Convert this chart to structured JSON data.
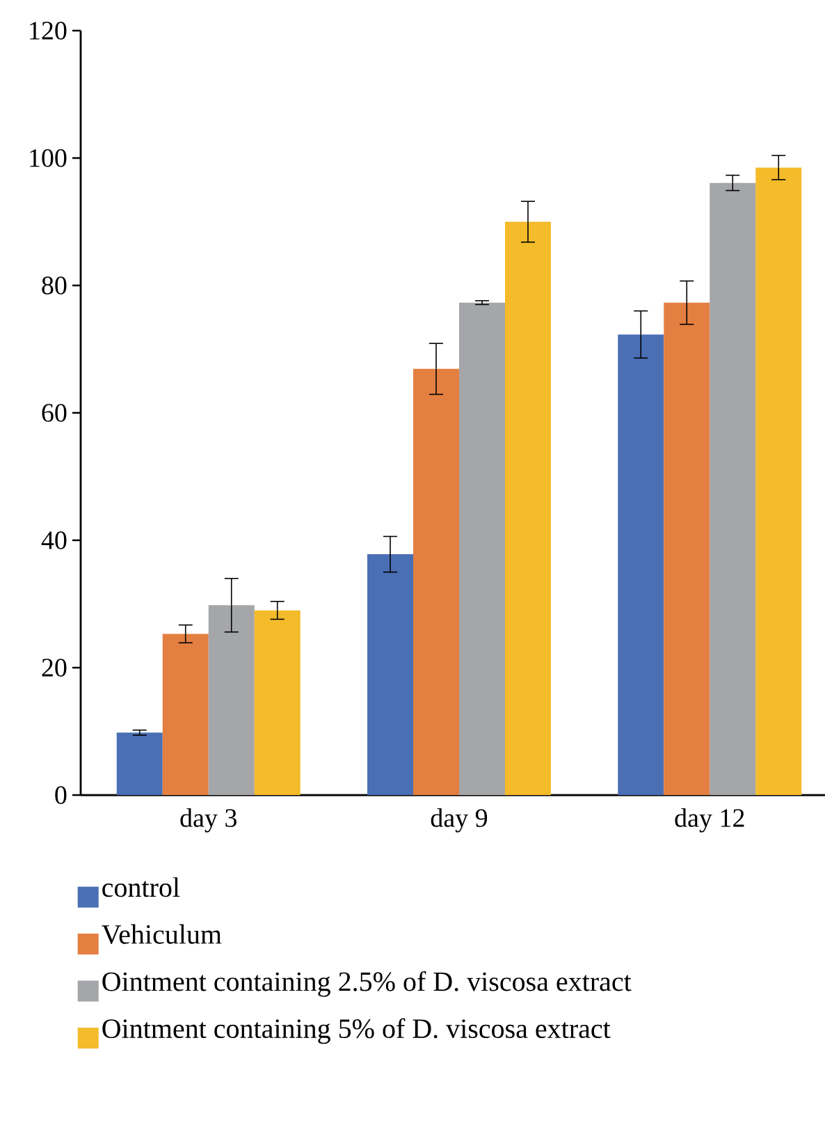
{
  "chart_data": {
    "type": "bar",
    "categories": [
      "day 3",
      "day 9",
      "day 12"
    ],
    "series": [
      {
        "name": "control",
        "color": "#4a6fb5",
        "values": [
          9.8,
          37.8,
          72.3
        ],
        "errors": [
          0.4,
          2.8,
          3.7
        ]
      },
      {
        "name": "Vehiculum",
        "color": "#e37f40",
        "values": [
          25.3,
          66.9,
          77.3
        ],
        "errors": [
          1.4,
          4.0,
          3.4
        ]
      },
      {
        "name": "Ointment containing 2.5% of D. viscosa extract",
        "color": "#a5a6aa",
        "values": [
          29.8,
          77.3,
          96.1
        ],
        "errors": [
          4.2,
          0.3,
          1.2
        ]
      },
      {
        "name": "Ointment containing 5% of D. viscosa extract",
        "color": "#f4bb2b",
        "values": [
          29.0,
          90.0,
          98.5
        ],
        "errors": [
          1.4,
          3.2,
          1.9
        ]
      }
    ],
    "ylim": [
      0,
      120
    ],
    "yticks": [
      0,
      20,
      40,
      60,
      80,
      100,
      120
    ],
    "grid": false,
    "legend": "bottom"
  }
}
